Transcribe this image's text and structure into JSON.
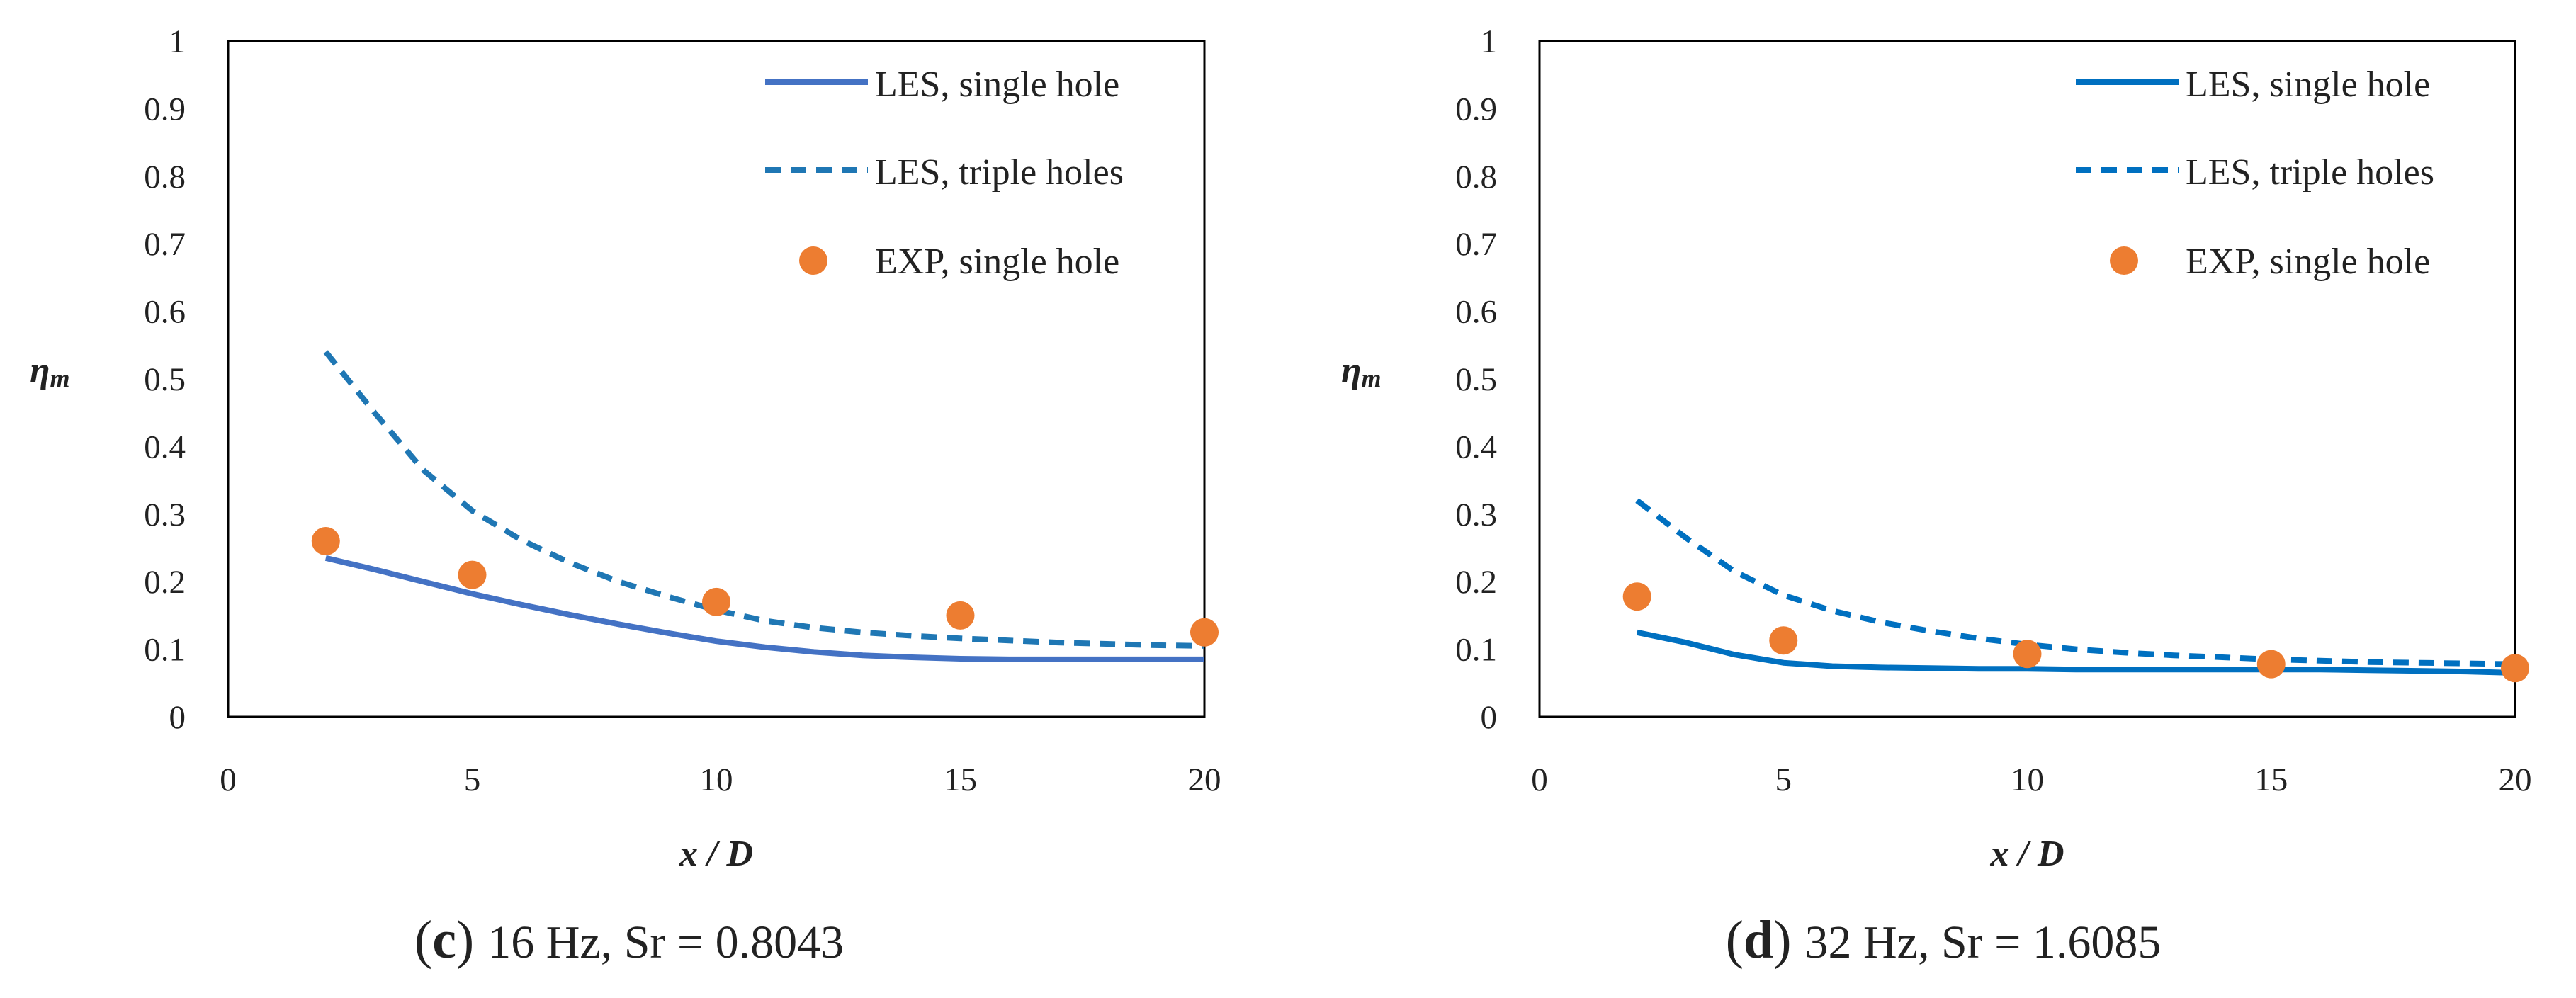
{
  "chart_data": [
    {
      "type": "line",
      "caption_letter": "c",
      "caption_text": "16 Hz, Sr = 0.8043",
      "xlabel": "x / D",
      "ylabel": "η",
      "ylabel_sub": "m",
      "xlim": [
        0,
        20
      ],
      "ylim": [
        0,
        1
      ],
      "x_ticks": [
        0,
        5,
        10,
        15,
        20
      ],
      "y_ticks": [
        0,
        0.1,
        0.2,
        0.3,
        0.4,
        0.5,
        0.6,
        0.7,
        0.8,
        0.9,
        1
      ],
      "grid": false,
      "legend_position": "top-right",
      "series": [
        {
          "name": "LES, single hole",
          "style": "solid",
          "color": "#4472C4",
          "x": [
            2,
            3,
            4,
            5,
            6,
            7,
            8,
            9,
            10,
            11,
            12,
            13,
            14,
            15,
            16,
            17,
            18,
            19,
            20
          ],
          "y": [
            0.235,
            0.218,
            0.2,
            0.182,
            0.166,
            0.151,
            0.137,
            0.124,
            0.112,
            0.103,
            0.096,
            0.091,
            0.088,
            0.086,
            0.085,
            0.085,
            0.085,
            0.085,
            0.085
          ]
        },
        {
          "name": "LES, triple holes",
          "style": "dashed",
          "color": "#1F77B4",
          "x": [
            2,
            3,
            4,
            5,
            6,
            7,
            8,
            9,
            10,
            11,
            12,
            13,
            14,
            15,
            16,
            17,
            18,
            19,
            20
          ],
          "y": [
            0.54,
            0.45,
            0.365,
            0.305,
            0.262,
            0.228,
            0.2,
            0.178,
            0.158,
            0.142,
            0.132,
            0.125,
            0.12,
            0.116,
            0.113,
            0.11,
            0.108,
            0.106,
            0.105
          ]
        },
        {
          "name": "EXP, single hole",
          "style": "marker",
          "color": "#ED7D31",
          "x": [
            2,
            5,
            10,
            15,
            20
          ],
          "y": [
            0.26,
            0.21,
            0.17,
            0.15,
            0.125
          ]
        }
      ]
    },
    {
      "type": "line",
      "caption_letter": "d",
      "caption_text": "32 Hz, Sr = 1.6085",
      "xlabel": "x / D",
      "ylabel": "η",
      "ylabel_sub": "m",
      "xlim": [
        0,
        20
      ],
      "ylim": [
        0,
        1
      ],
      "x_ticks": [
        0,
        5,
        10,
        15,
        20
      ],
      "y_ticks": [
        0,
        0.1,
        0.2,
        0.3,
        0.4,
        0.5,
        0.6,
        0.7,
        0.8,
        0.9,
        1
      ],
      "grid": false,
      "legend_position": "top-right",
      "series": [
        {
          "name": "LES, single hole",
          "style": "solid",
          "color": "#0070C0",
          "x": [
            2,
            3,
            4,
            5,
            6,
            7,
            8,
            9,
            10,
            11,
            12,
            13,
            14,
            15,
            16,
            17,
            18,
            19,
            20
          ],
          "y": [
            0.125,
            0.11,
            0.092,
            0.08,
            0.075,
            0.073,
            0.072,
            0.071,
            0.071,
            0.07,
            0.07,
            0.07,
            0.07,
            0.07,
            0.07,
            0.069,
            0.068,
            0.067,
            0.065
          ]
        },
        {
          "name": "LES, triple holes",
          "style": "dashed",
          "color": "#0070C0",
          "x": [
            2,
            3,
            4,
            5,
            6,
            7,
            8,
            9,
            10,
            11,
            12,
            13,
            14,
            15,
            16,
            17,
            18,
            19,
            20
          ],
          "y": [
            0.32,
            0.265,
            0.215,
            0.18,
            0.157,
            0.14,
            0.127,
            0.116,
            0.107,
            0.1,
            0.095,
            0.091,
            0.088,
            0.085,
            0.083,
            0.081,
            0.08,
            0.079,
            0.078
          ]
        },
        {
          "name": "EXP, single hole",
          "style": "marker",
          "color": "#ED7D31",
          "x": [
            2,
            5,
            10,
            15,
            20
          ],
          "y": [
            0.178,
            0.113,
            0.093,
            0.078,
            0.072
          ]
        }
      ]
    }
  ]
}
